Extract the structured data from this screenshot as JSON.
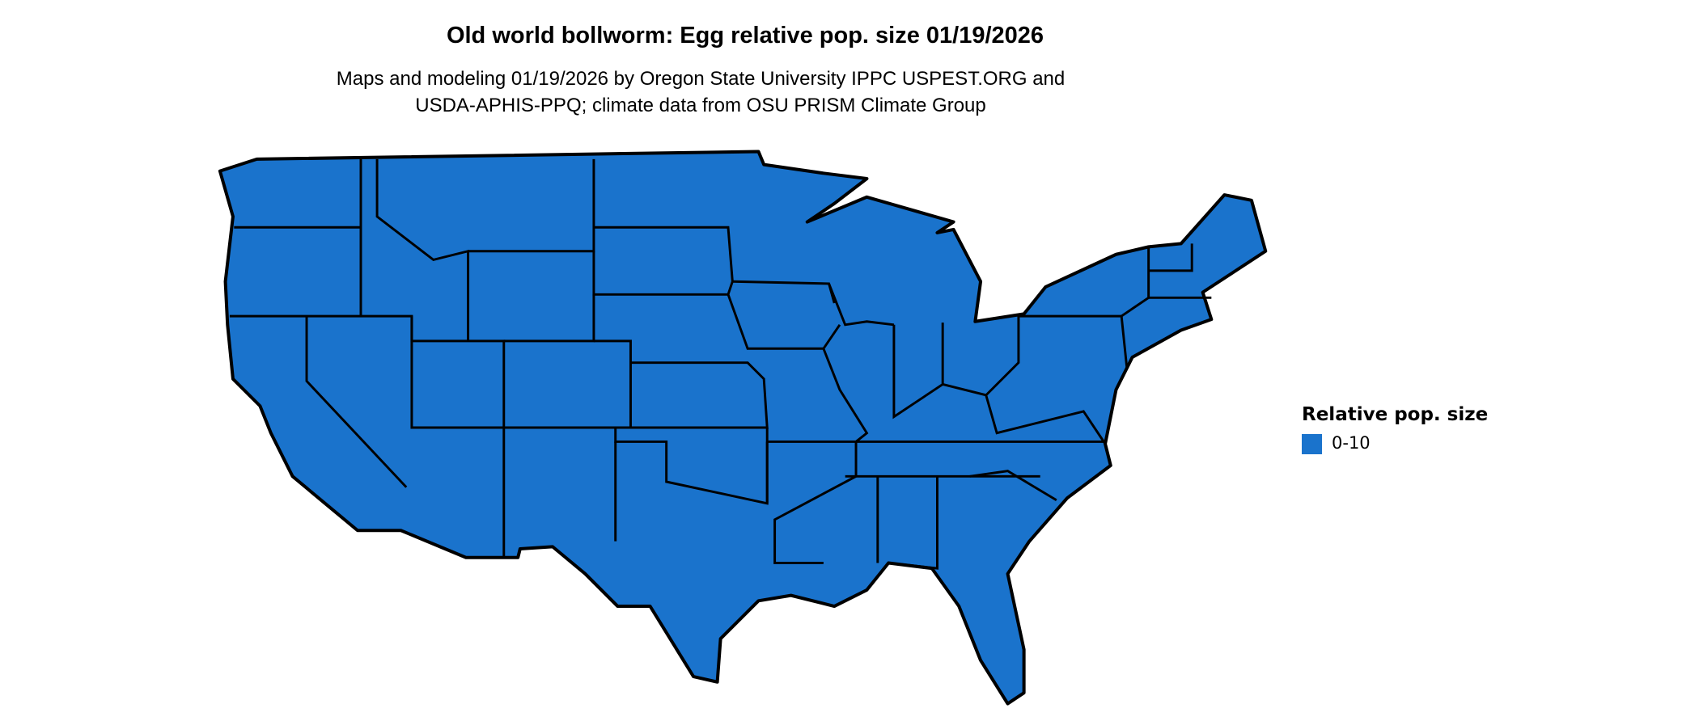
{
  "title": "Old world bollworm: Egg relative pop. size 01/19/2026",
  "subtitle_lines": [
    "Maps and modeling 01/19/2026 by Oregon State University IPPC USPEST.ORG and",
    "USDA-APHIS-PPQ; climate data from OSU PRISM Climate Group"
  ],
  "map": {
    "region": "Contiguous United States",
    "fill_color": "#1a73cc",
    "border_color": "#000000"
  },
  "legend": {
    "title": "Relative pop. size",
    "items": [
      {
        "label": "0-10",
        "color": "#1a73cc"
      }
    ]
  }
}
